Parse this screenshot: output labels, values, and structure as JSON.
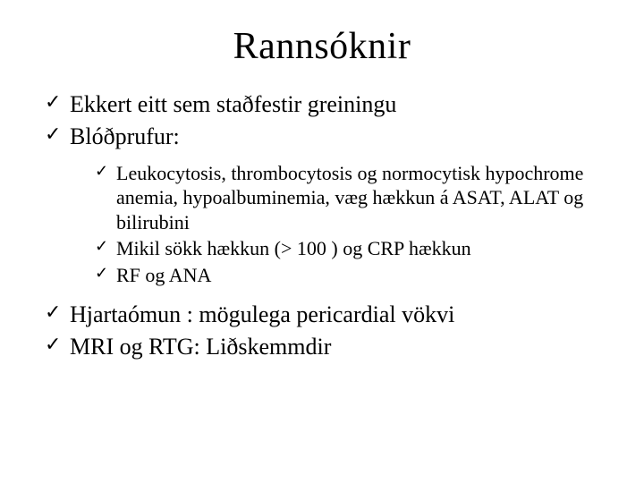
{
  "title": "Rannsóknir",
  "colors": {
    "background": "#ffffff",
    "text": "#000000"
  },
  "typography": {
    "title_fontsize_pt": 32,
    "level1_fontsize_pt": 20,
    "level2_fontsize_pt": 17,
    "font_family": "Times New Roman"
  },
  "bullets": {
    "marker": "checkmark",
    "level1": [
      {
        "text": "Ekkert eitt sem staðfestir greiningu"
      },
      {
        "text": "Blóðprufur:",
        "children": [
          {
            "text": " Leukocytosis, thrombocytosis og normocytisk hypochrome anemia, hypoalbuminemia, væg hækkun á ASAT, ALAT og bilirubini"
          },
          {
            "text": "Mikil sökk hækkun (> 100 ) og CRP hækkun"
          },
          {
            "text": "RF og ANA"
          }
        ]
      },
      {
        "text": "Hjartaómun : mögulega pericardial vökvi"
      },
      {
        "text": "MRI og RTG:  Liðskemmdir"
      }
    ]
  }
}
